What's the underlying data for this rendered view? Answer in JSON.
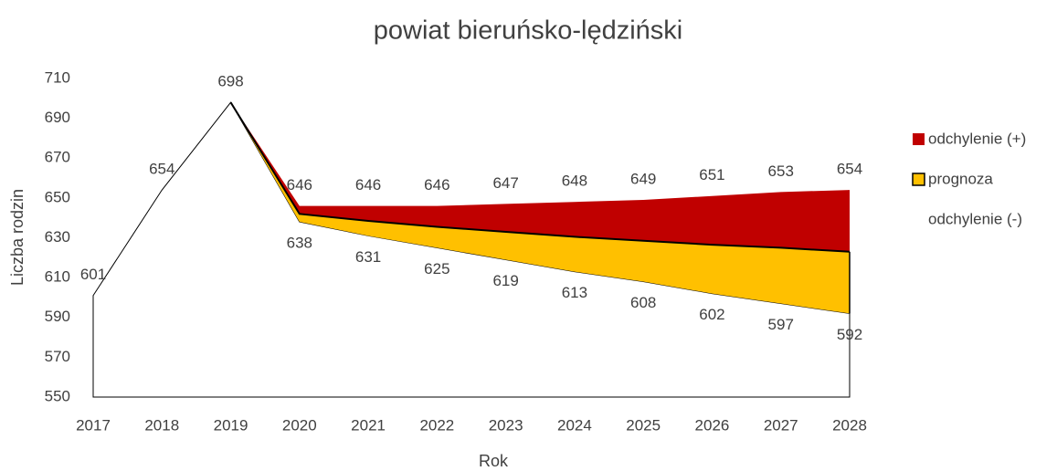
{
  "chart_data": {
    "type": "area_band",
    "title": "powiat bieruńsko-lędziński",
    "xlabel": "Rok",
    "ylabel": "Liczba rodzin",
    "categories": [
      "2017",
      "2018",
      "2019",
      "2020",
      "2021",
      "2022",
      "2023",
      "2024",
      "2025",
      "2026",
      "2027",
      "2028"
    ],
    "series": [
      {
        "name": "odchylenie (+)",
        "color": "#c00000",
        "data_labels": true,
        "values": [
          null,
          null,
          null,
          646,
          646,
          646,
          647,
          648,
          649,
          651,
          653,
          654
        ]
      },
      {
        "name": "prognoza",
        "color": "#ffc000",
        "data_labels": false,
        "values": [
          null,
          null,
          698,
          642,
          638.5,
          635.5,
          633,
          630.5,
          628.5,
          626.5,
          625,
          623
        ]
      },
      {
        "name": "odchylenie (-)",
        "color": "#ffffff",
        "data_labels": true,
        "values": [
          601,
          654,
          698,
          638,
          631,
          625,
          619,
          613,
          608,
          602,
          597,
          592
        ]
      }
    ],
    "ylim": [
      550,
      710
    ],
    "yticks": [
      550,
      570,
      590,
      610,
      630,
      650,
      670,
      690,
      710
    ],
    "grid": false,
    "legend": "right"
  }
}
